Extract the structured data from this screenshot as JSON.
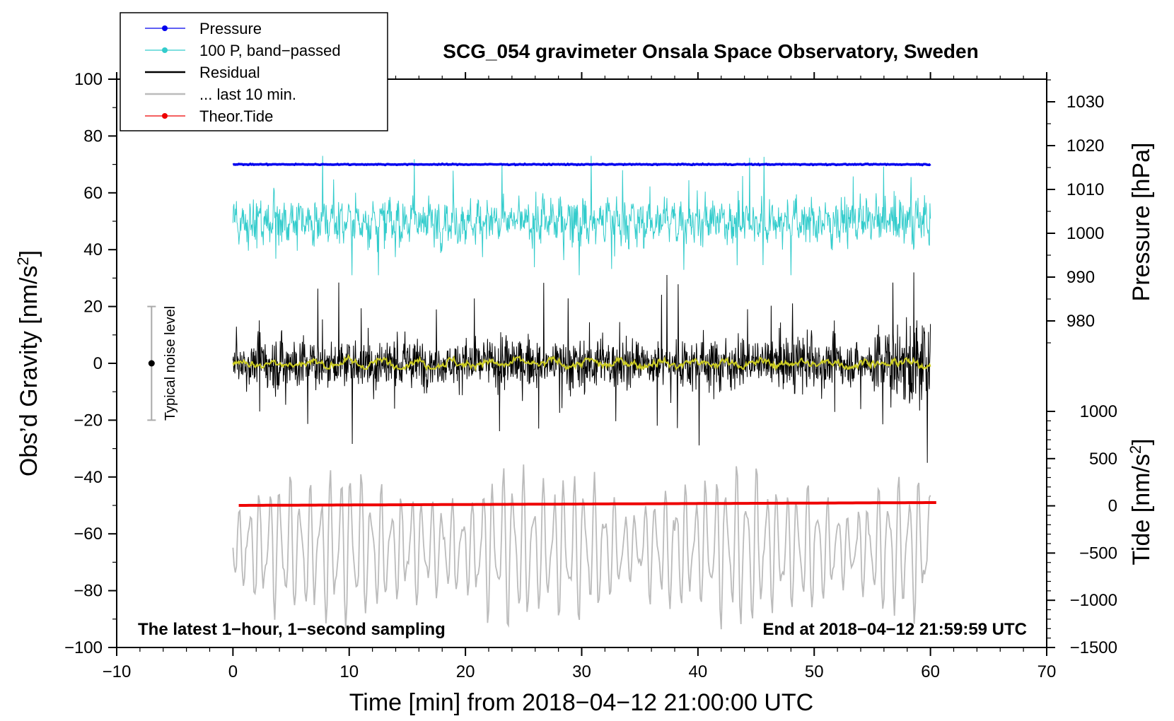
{
  "chart_data": {
    "type": "line",
    "title": "SCG_054 gravimeter Onsala Space Observatory, Sweden",
    "xlabel": "Time [min] from 2018−04−12 21:00:00 UTC",
    "ylabel_left": "Obs’d Gravity [nm/s",
    "ylabel_left_sup": "2",
    "ylabel_left_end": "]",
    "ylabel_right_top": "Pressure [hPa]",
    "ylabel_right_bottom": "Tide [nm/s",
    "ylabel_right_bottom_sup": "2",
    "ylabel_right_bottom_end": "]",
    "xlim": [
      -10,
      70
    ],
    "ylim": [
      -100,
      100
    ],
    "pressure_axis_range": [
      1030,
      980
    ],
    "tide_axis_range": [
      1000,
      -1500
    ],
    "x_ticks": [
      "−10",
      "0",
      "10",
      "20",
      "30",
      "40",
      "50",
      "60",
      "70"
    ],
    "y_ticks": [
      "100",
      "80",
      "60",
      "40",
      "20",
      "0",
      "−20",
      "−40",
      "−60",
      "−80",
      "−100"
    ],
    "pressure_ticks": [
      "1030",
      "1020",
      "1010",
      "1000",
      "990",
      "980"
    ],
    "tide_ticks": [
      "1000",
      "500",
      "0",
      "−500",
      "−1000",
      "−1500"
    ],
    "grid": false,
    "legend_position": "top-left",
    "annotations": {
      "bottom_left": "The latest 1−hour, 1−second sampling",
      "bottom_right": "End at 2018−04−12 21:59:59 UTC",
      "noise_label": "Typical noise level"
    },
    "noise_bar": {
      "x": -7,
      "center": 0,
      "low": -20,
      "high": 20
    },
    "series": [
      {
        "name": "Pressure",
        "color": "#0000ee",
        "x_range": [
          0,
          60
        ],
        "y_level": 70,
        "axis": "left"
      },
      {
        "name": "100 P, band−passed",
        "color": "#33cccc",
        "x_range": [
          0,
          60
        ],
        "y_level": 50,
        "y_spread": [
          31,
          73
        ],
        "axis": "left"
      },
      {
        "name": "Residual",
        "color": "#000000",
        "x_range": [
          0,
          60
        ],
        "y_level": 0,
        "y_spread": [
          -35,
          32
        ],
        "axis": "left"
      },
      {
        "name": "... last 10 min.",
        "color": "#bbbbbb",
        "x_range": [
          0,
          60
        ],
        "y_level": -65,
        "y_spread": [
          -97,
          -29
        ],
        "axis": "left"
      },
      {
        "name": "Theor.Tide",
        "color": "#ee0000",
        "x_range": [
          0.5,
          60.5
        ],
        "y_start": -50,
        "y_end": -49,
        "axis": "left"
      },
      {
        "name": "",
        "color": "#cccc22",
        "x_range": [
          0,
          60
        ],
        "y_level": 0,
        "y_spread": [
          -2,
          3
        ],
        "axis": "left"
      }
    ]
  },
  "colors": {
    "pressure": "#0000ee",
    "bandpassed": "#33cccc",
    "residual": "#000000",
    "last10": "#bbbbbb",
    "tide": "#ee0000",
    "smoothed": "#cccc22"
  }
}
